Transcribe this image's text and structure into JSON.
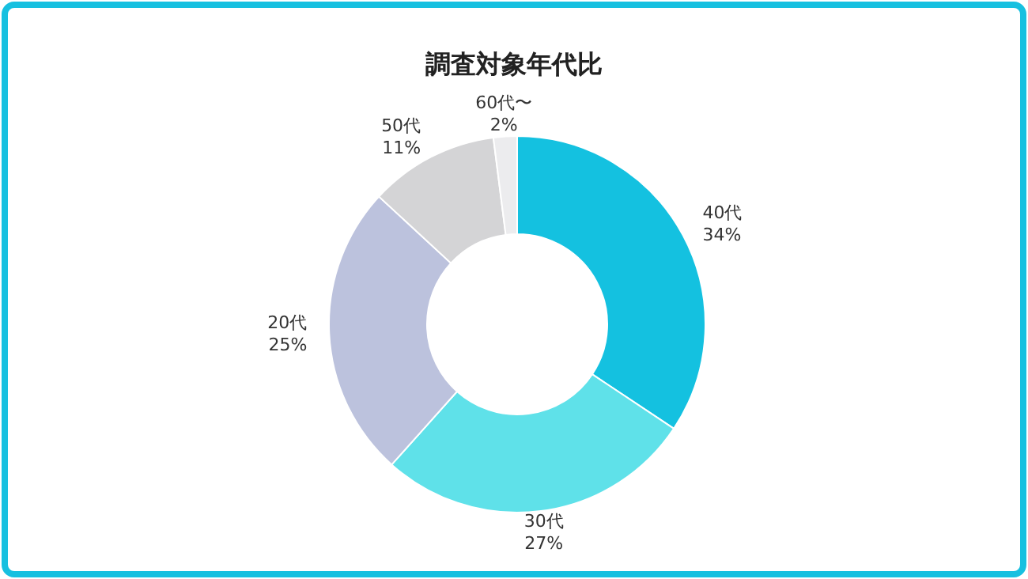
{
  "chart_data": {
    "type": "donut",
    "title": "調査対象年代比",
    "categories": [
      "40代",
      "30代",
      "20代",
      "50代",
      "60代〜"
    ],
    "values": [
      34,
      27,
      25,
      11,
      2
    ],
    "colors": [
      "#14c1e0",
      "#5fe1e9",
      "#bcc2dd",
      "#d4d4d6",
      "#ececee"
    ],
    "value_labels": [
      "34%",
      "27%",
      "25%",
      "11%",
      "2%"
    ]
  }
}
